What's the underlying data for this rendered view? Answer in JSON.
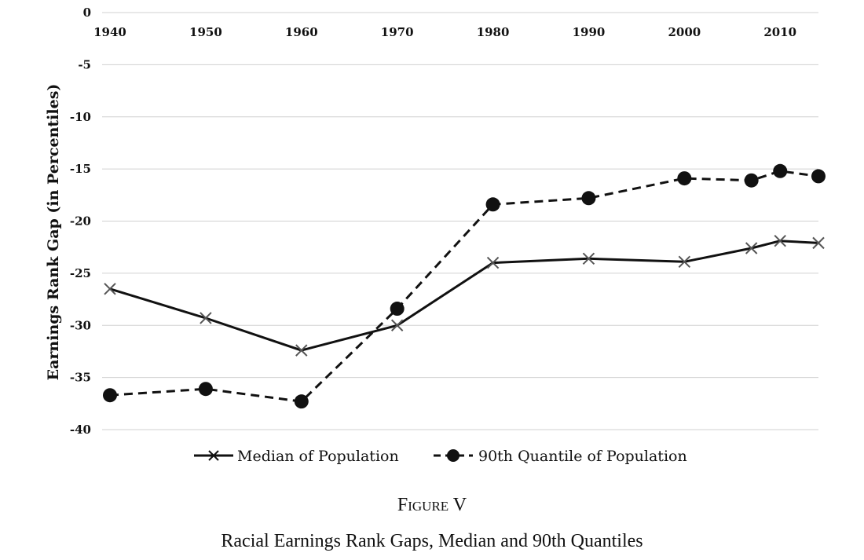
{
  "figure": {
    "label_word": "Figure",
    "label_number": "V",
    "caption": "Racial Earnings Rank Gaps, Median and 90th Quantiles"
  },
  "chart_data": {
    "type": "line",
    "ylabel": "Earnings Rank Gap  (in Percentiles)",
    "xlabel": "",
    "title": "",
    "x_axis_position": "top",
    "x_tick_labels": [
      "1940",
      "1950",
      "1960",
      "1970",
      "1980",
      "1990",
      "2000",
      "2010"
    ],
    "y_tick_labels": [
      "0",
      "-5",
      "-10",
      "-15",
      "-20",
      "-25",
      "-30",
      "-35",
      "-40"
    ],
    "ylim": [
      -40,
      0
    ],
    "xlim": [
      1940,
      2014
    ],
    "grid": true,
    "legend_position": "bottom",
    "series": [
      {
        "name": "Median of Population",
        "style": "solid",
        "marker": "x",
        "color": "#111111",
        "x": [
          1940,
          1950,
          1960,
          1970,
          1980,
          1990,
          2000,
          2007,
          2010,
          2014
        ],
        "y": [
          -26.5,
          -29.3,
          -32.4,
          -30.0,
          -24.0,
          -23.6,
          -23.9,
          -22.6,
          -21.9,
          -22.1
        ]
      },
      {
        "name": "90th Quantile of Population",
        "style": "dashed",
        "marker": "circle",
        "color": "#111111",
        "x": [
          1940,
          1950,
          1960,
          1970,
          1980,
          1990,
          2000,
          2007,
          2010,
          2014
        ],
        "y": [
          -36.7,
          -36.1,
          -37.3,
          -28.4,
          -18.4,
          -17.8,
          -15.9,
          -16.1,
          -15.2,
          -15.7
        ]
      }
    ]
  }
}
